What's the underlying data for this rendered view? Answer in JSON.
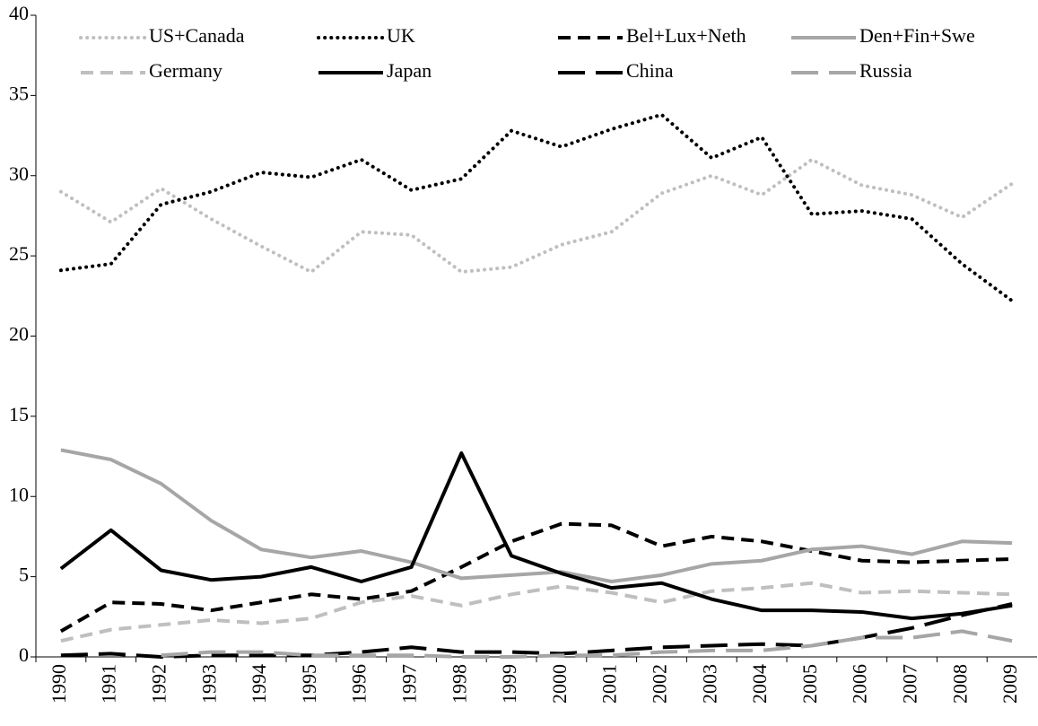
{
  "chart_data": {
    "type": "line",
    "categories": [
      "1990",
      "1991",
      "1992",
      "1993",
      "1994",
      "1995",
      "1996",
      "1997",
      "1998",
      "1999",
      "2000",
      "2001",
      "2002",
      "2003",
      "2004",
      "2005",
      "2006",
      "2007",
      "2008",
      "2009"
    ],
    "ylim": [
      0,
      40
    ],
    "yticks": [
      0,
      5,
      10,
      15,
      20,
      25,
      30,
      35,
      40
    ],
    "series": [
      {
        "name": "US+Canada",
        "color": "#bfbfbf",
        "style": "dotted",
        "values": [
          29.0,
          27.1,
          29.2,
          27.3,
          25.6,
          24.0,
          26.5,
          26.3,
          24.0,
          24.3,
          25.7,
          26.5,
          28.9,
          30.0,
          28.8,
          31.0,
          29.4,
          28.8,
          27.4,
          29.5
        ]
      },
      {
        "name": "UK",
        "color": "#000000",
        "style": "dotted",
        "values": [
          24.1,
          24.5,
          28.2,
          29.0,
          30.2,
          29.9,
          31.0,
          29.1,
          29.8,
          32.8,
          31.8,
          32.9,
          33.8,
          31.1,
          32.4,
          27.6,
          27.8,
          27.3,
          24.5,
          22.2
        ]
      },
      {
        "name": "Bel+Lux+Neth",
        "color": "#000000",
        "style": "dashed",
        "values": [
          1.6,
          3.4,
          3.3,
          2.9,
          3.4,
          3.9,
          3.6,
          4.1,
          5.6,
          7.2,
          8.3,
          8.2,
          6.9,
          7.5,
          7.2,
          6.6,
          6.0,
          5.9,
          6.0,
          6.1
        ]
      },
      {
        "name": "Den+Fin+Swe",
        "color": "#a6a6a6",
        "style": "solid",
        "values": [
          12.9,
          12.3,
          10.8,
          8.5,
          6.7,
          6.2,
          6.6,
          5.9,
          4.9,
          5.1,
          5.3,
          4.7,
          5.1,
          5.8,
          6.0,
          6.7,
          6.9,
          6.4,
          7.2,
          7.1
        ]
      },
      {
        "name": "Germany",
        "color": "#bfbfbf",
        "style": "dashed",
        "values": [
          1.0,
          1.7,
          2.0,
          2.3,
          2.1,
          2.4,
          3.4,
          3.8,
          3.2,
          3.9,
          4.4,
          4.0,
          3.4,
          4.1,
          4.3,
          4.6,
          4.0,
          4.1,
          4.0,
          3.9
        ]
      },
      {
        "name": "Japan",
        "color": "#000000",
        "style": "solid",
        "values": [
          5.5,
          7.9,
          5.4,
          4.8,
          5.0,
          5.6,
          4.7,
          5.6,
          12.7,
          6.3,
          5.2,
          4.3,
          4.6,
          3.6,
          2.9,
          2.9,
          2.8,
          2.4,
          2.7,
          3.2
        ]
      },
      {
        "name": "China",
        "color": "#000000",
        "style": "longdash",
        "values": [
          0.1,
          0.2,
          0.0,
          0.1,
          0.1,
          0.1,
          0.3,
          0.6,
          0.3,
          0.3,
          0.2,
          0.4,
          0.6,
          0.7,
          0.8,
          0.7,
          1.2,
          1.8,
          2.6,
          3.3
        ]
      },
      {
        "name": "Russia",
        "color": "#a6a6a6",
        "style": "longdash",
        "values": [
          null,
          null,
          0.1,
          0.3,
          0.3,
          0.1,
          0.1,
          0.1,
          0.0,
          0.0,
          0.1,
          0.1,
          0.3,
          0.4,
          0.4,
          0.7,
          1.2,
          1.2,
          1.6,
          1.0
        ]
      }
    ]
  }
}
